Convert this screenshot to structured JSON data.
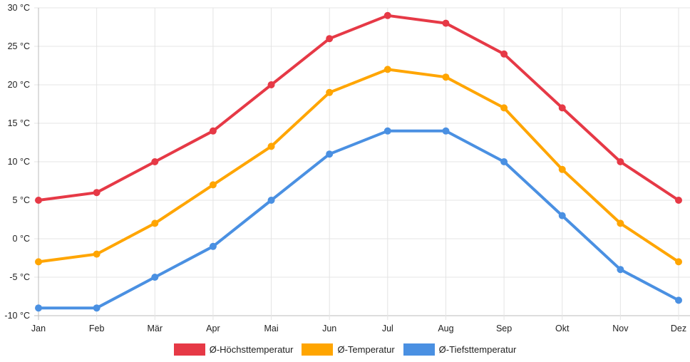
{
  "chart_data": {
    "type": "line",
    "title": "",
    "xlabel": "",
    "ylabel": "",
    "categories": [
      "Jan",
      "Feb",
      "Mär",
      "Apr",
      "Mai",
      "Jun",
      "Jul",
      "Aug",
      "Sep",
      "Okt",
      "Nov",
      "Dez"
    ],
    "ylim": [
      -10,
      30
    ],
    "yticks": [
      -10,
      -5,
      0,
      5,
      10,
      15,
      20,
      25,
      30
    ],
    "ytick_labels": [
      "-10 °C",
      "-5 °C",
      "0 °C",
      "5 °C",
      "10 °C",
      "15 °C",
      "20 °C",
      "25 °C",
      "30 °C"
    ],
    "grid": true,
    "legend_position": "bottom",
    "series": [
      {
        "name": "Ø-Höchsttemperatur",
        "color": "#e63946",
        "values": [
          5,
          6,
          10,
          14,
          20,
          26,
          29,
          28,
          24,
          17,
          10,
          5
        ]
      },
      {
        "name": "Ø-Temperatur",
        "color": "#ffa500",
        "values": [
          -3,
          -2,
          2,
          7,
          12,
          19,
          22,
          21,
          17,
          9,
          2,
          -3
        ]
      },
      {
        "name": "Ø-Tiefsttemperatur",
        "color": "#4a90e2",
        "values": [
          -9,
          -9,
          -5,
          -1,
          5,
          11,
          14,
          14,
          10,
          3,
          -4,
          -8
        ]
      }
    ]
  }
}
